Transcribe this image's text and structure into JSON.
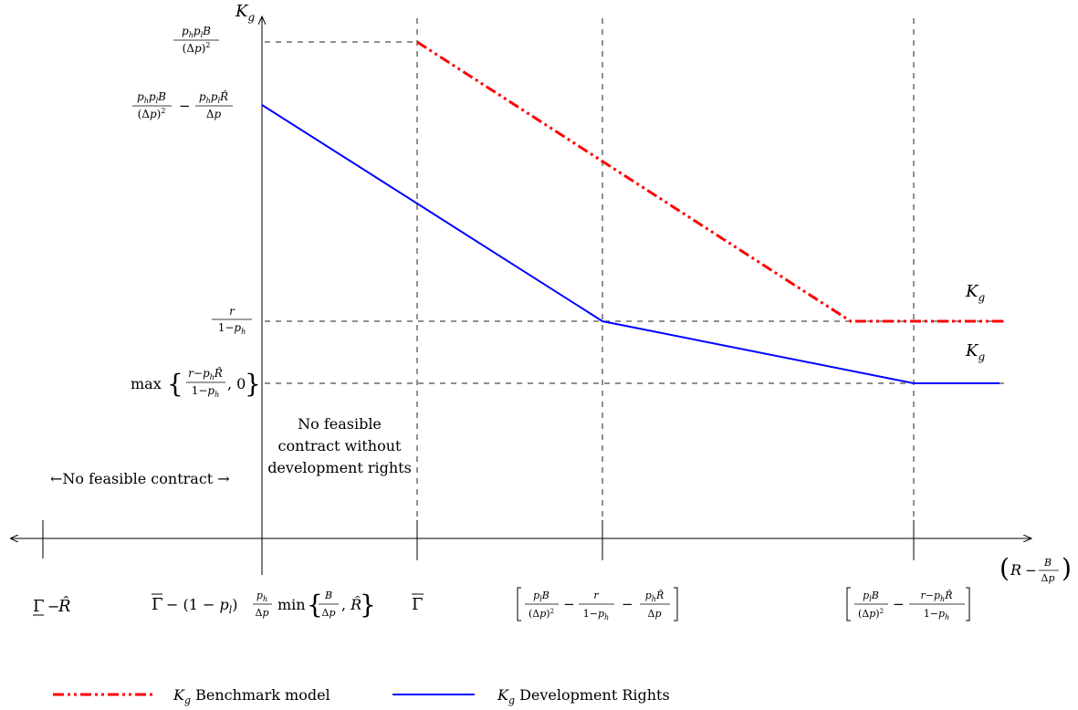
{
  "chart_data": {
    "type": "line",
    "title": "",
    "ylabel": "K_g",
    "xlabel": "(R − B/Δp)",
    "x_ticks": [
      {
        "id": "t0",
        "label": "Γ̲ − R̂"
      },
      {
        "id": "t1",
        "label": "Γ̄ − (1 − p_l) (p_h/Δp) min{B/Δp, R̂}"
      },
      {
        "id": "t2",
        "label": "Γ̄"
      },
      {
        "id": "t3",
        "label": "[p_l B/(Δp)² − r/(1−p_h) − p_h R̂/Δp]"
      },
      {
        "id": "t4",
        "label": "[p_l B/(Δp)² − (r−p_h R̂)/(1−p_h)]"
      }
    ],
    "y_ticks": [
      {
        "id": "y0",
        "label": "p_h p_l B/(Δp)²"
      },
      {
        "id": "y1",
        "label": "p_h p_l B/(Δp)² − p_h p_l R̂/Δp"
      },
      {
        "id": "y2",
        "label": "r/(1−p_h)"
      },
      {
        "id": "y3",
        "label": "max{(r−p_h R̂)/(1−p_h), 0}"
      }
    ],
    "series": [
      {
        "name": "K_g Benchmark model",
        "color": "#ff0000",
        "style": "dash-dot-dot",
        "points": [
          [
            "t2",
            "y0"
          ],
          [
            "between t3 and t4",
            "y2"
          ],
          [
            "beyond t4",
            "y2"
          ]
        ]
      },
      {
        "name": "K_g Development Rights",
        "color": "#0000ff",
        "style": "solid",
        "points": [
          [
            "t1",
            "y1"
          ],
          [
            "t3",
            "y2"
          ],
          [
            "t4",
            "y3"
          ],
          [
            "beyond t4",
            "y3"
          ]
        ]
      }
    ],
    "curve_labels": [
      "K_g",
      "K_g"
    ],
    "annotations": {
      "no_feasible": "←No feasible contract →",
      "no_feasible_dev": [
        "No feasible",
        "contract without",
        "development rights"
      ]
    },
    "legend": {
      "placement": "bottom",
      "entries": [
        {
          "symbol": "K",
          "sub": "g",
          "text": " Benchmark model"
        },
        {
          "symbol": "K",
          "sub": "g",
          "text": " Development Rights"
        }
      ]
    },
    "grid": false
  }
}
